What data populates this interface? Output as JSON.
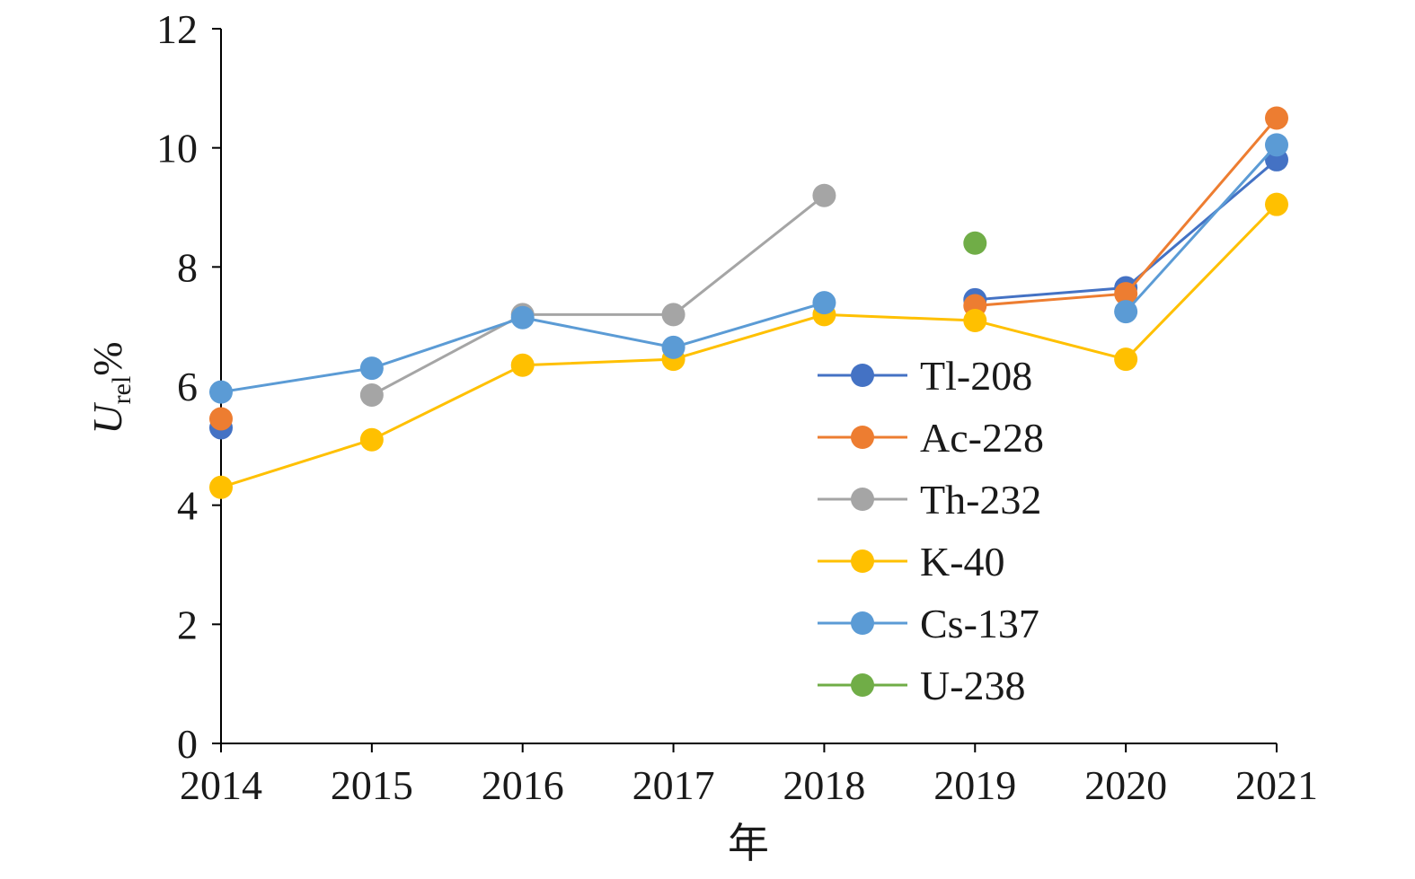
{
  "chart_data": {
    "type": "line",
    "title": "",
    "xlabel": "年",
    "ylabel": {
      "main": "U",
      "sub": "rel",
      "suffix": "%"
    },
    "categories": [
      "2014",
      "2015",
      "2016",
      "2017",
      "2018",
      "2019",
      "2020",
      "2021"
    ],
    "ylim": [
      0,
      12
    ],
    "yticks": [
      "0",
      "2",
      "4",
      "6",
      "8",
      "10",
      "12"
    ],
    "grid": false,
    "legend_position": "center-right",
    "series": [
      {
        "name": "Tl-208",
        "color": "#4472C4",
        "values": [
          5.3,
          null,
          null,
          null,
          null,
          7.45,
          7.65,
          9.8
        ]
      },
      {
        "name": "Ac-228",
        "color": "#ED7D31",
        "values": [
          5.45,
          null,
          null,
          null,
          null,
          7.35,
          7.55,
          10.5
        ]
      },
      {
        "name": "Th-232",
        "color": "#A5A5A5",
        "values": [
          null,
          5.85,
          7.2,
          7.2,
          9.2,
          null,
          null,
          null
        ]
      },
      {
        "name": "K-40",
        "color": "#FFC000",
        "values": [
          4.3,
          5.1,
          6.35,
          6.45,
          7.2,
          7.1,
          6.45,
          9.05
        ]
      },
      {
        "name": "Cs-137",
        "color": "#5B9BD5",
        "values": [
          5.9,
          6.3,
          7.15,
          6.65,
          7.4,
          null,
          7.25,
          10.05
        ]
      },
      {
        "name": "U-238",
        "color": "#70AD47",
        "values": [
          null,
          null,
          null,
          null,
          null,
          8.4,
          null,
          null
        ]
      }
    ]
  }
}
